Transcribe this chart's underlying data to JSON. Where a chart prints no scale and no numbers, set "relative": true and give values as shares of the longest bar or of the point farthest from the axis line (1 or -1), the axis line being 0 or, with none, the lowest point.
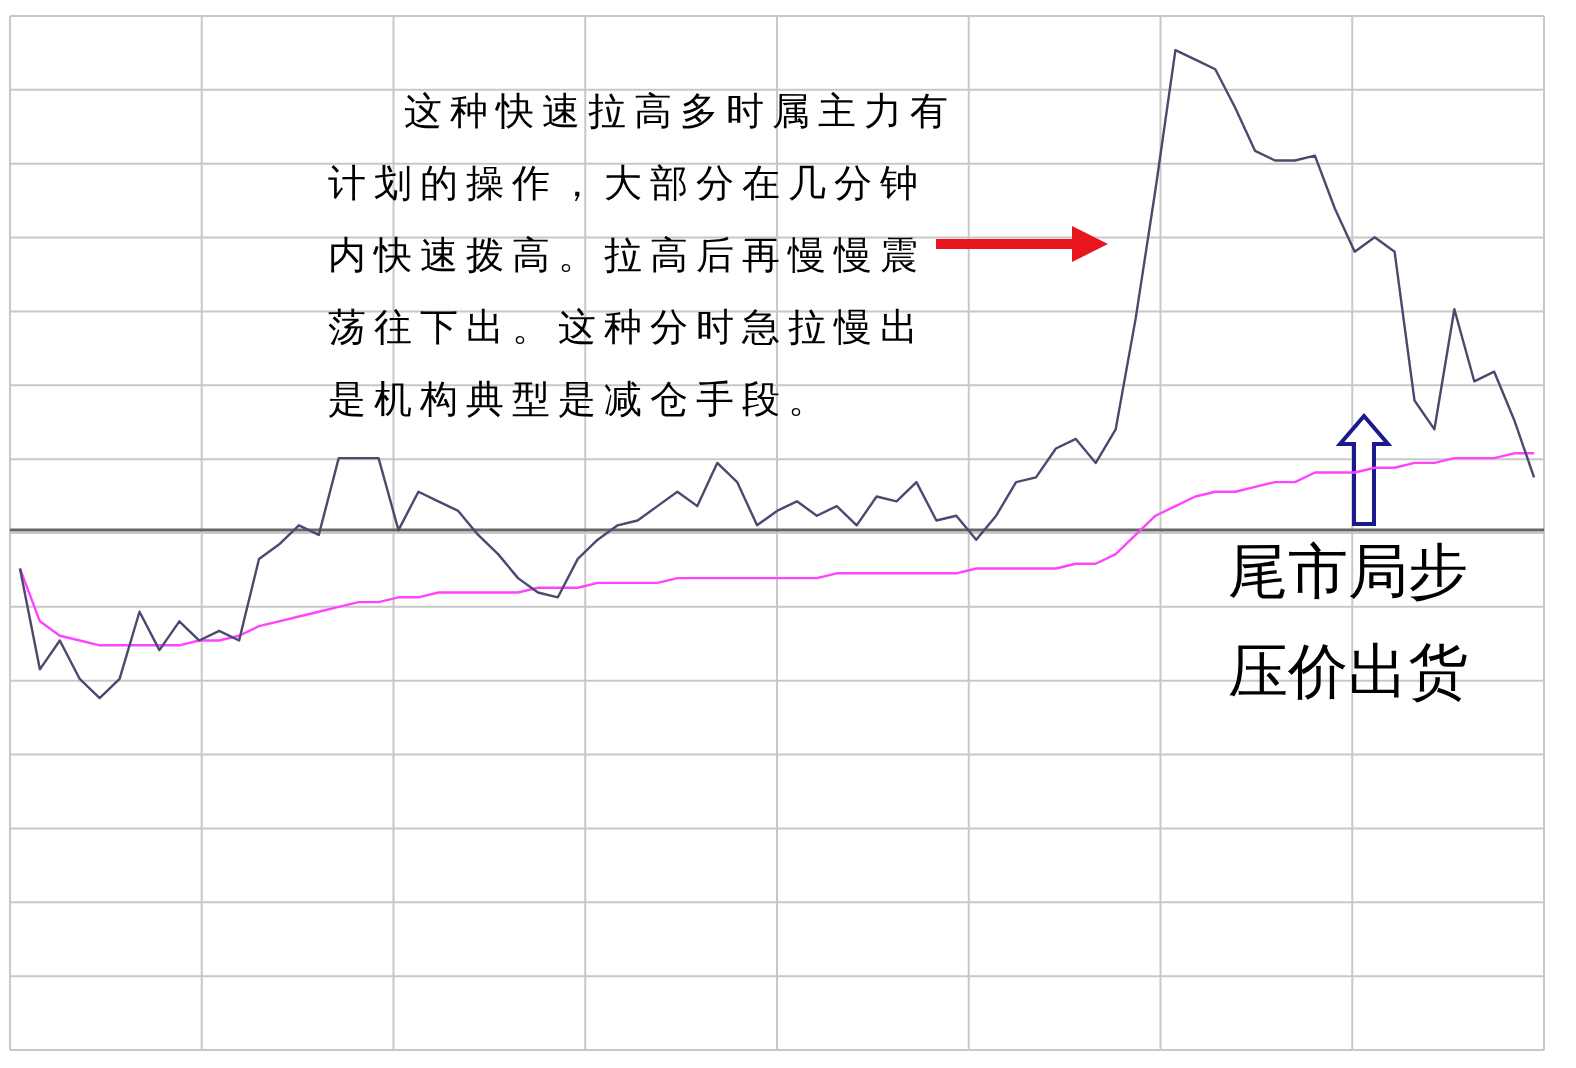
{
  "chart_data": {
    "type": "line",
    "relative": true,
    "grid": true,
    "categories": [
      null,
      null,
      null,
      null,
      null,
      null,
      null,
      null,
      null,
      null,
      null,
      null,
      null,
      null,
      null,
      null,
      null,
      null,
      null,
      null,
      null,
      null,
      null,
      null,
      null,
      null,
      null,
      null,
      null,
      null,
      null,
      null,
      null,
      null,
      null,
      null,
      null,
      null,
      null,
      null,
      null,
      null,
      null,
      null,
      null,
      null,
      null,
      null,
      null,
      null,
      null,
      null,
      null,
      null,
      null,
      null,
      null,
      null,
      null,
      null,
      null,
      null,
      null,
      null,
      null,
      null,
      null,
      null,
      null,
      null,
      null,
      null,
      null,
      null,
      null,
      null,
      null
    ],
    "series": [
      {
        "color": "#4a4a6e",
        "values": [
          -0.08,
          -0.29,
          -0.23,
          -0.31,
          -0.35,
          -0.31,
          -0.17,
          -0.25,
          -0.19,
          -0.23,
          -0.21,
          -0.23,
          -0.06,
          -0.03,
          0.01,
          -0.01,
          0.15,
          0.15,
          0.15,
          0,
          0.08,
          0.06,
          0.04,
          -0.01,
          -0.05,
          -0.1,
          -0.13,
          -0.14,
          -0.06,
          -0.02,
          0.01,
          0.02,
          0.05,
          0.08,
          0.05,
          0.14,
          0.1,
          0.01,
          0.04,
          0.06,
          0.03,
          0.05,
          0.01,
          0.07,
          0.06,
          0.1,
          0.02,
          0.03,
          -0.02,
          0.03,
          0.1,
          0.11,
          0.17,
          0.19,
          0.14,
          0.21,
          0.44,
          0.71,
          1,
          0.98,
          0.96,
          0.88,
          0.79,
          0.77,
          0.77,
          0.78,
          0.67,
          0.58,
          0.61,
          0.58,
          0.27,
          0.21,
          0.46,
          0.31,
          0.33,
          0.23,
          0.11
        ]
      },
      {
        "color": "#ff44ff",
        "values": [
          -0.08,
          -0.19,
          -0.22,
          -0.23,
          -0.24,
          -0.24,
          -0.24,
          -0.24,
          -0.24,
          -0.23,
          -0.23,
          -0.22,
          -0.2,
          -0.19,
          -0.18,
          -0.17,
          -0.16,
          -0.15,
          -0.15,
          -0.14,
          -0.14,
          -0.13,
          -0.13,
          -0.13,
          -0.13,
          -0.13,
          -0.12,
          -0.12,
          -0.12,
          -0.11,
          -0.11,
          -0.11,
          -0.11,
          -0.1,
          -0.1,
          -0.1,
          -0.1,
          -0.1,
          -0.1,
          -0.1,
          -0.1,
          -0.09,
          -0.09,
          -0.09,
          -0.09,
          -0.09,
          -0.09,
          -0.09,
          -0.08,
          -0.08,
          -0.08,
          -0.08,
          -0.08,
          -0.07,
          -0.07,
          -0.05,
          -0.01,
          0.03,
          0.05,
          0.07,
          0.08,
          0.08,
          0.09,
          0.1,
          0.1,
          0.12,
          0.12,
          0.12,
          0.13,
          0.13,
          0.14,
          0.14,
          0.15,
          0.15,
          0.15,
          0.16,
          0.16
        ]
      }
    ],
    "annotations": [
      "这种快速拉高多时属主力有计划的操作，大部分在几分钟内快速拨高。拉高后再慢慢震荡往下出。这种分时急拉慢出是机构典型是减仓手段。",
      "尾市局步压价出货"
    ]
  }
}
